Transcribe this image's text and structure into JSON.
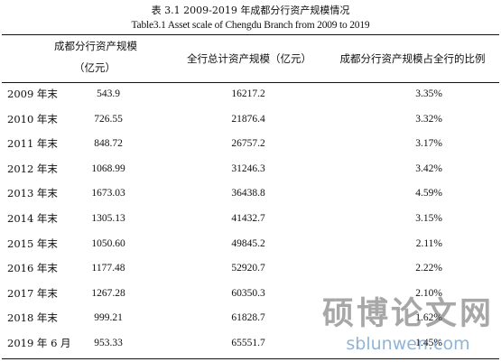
{
  "caption": {
    "chinese": "表  3.1 2009-2019 年成都分行资产规模情况",
    "english": "Table3.1 Asset scale of Chengdu Branch from 2009 to 2019"
  },
  "table": {
    "headers": {
      "col1_line1": "成都分行资产规模",
      "col1_line2": "（亿元）",
      "col2": "全行总计资产规模（亿元）",
      "col3": "成都分行资产规模占全行的比例"
    },
    "rows": [
      {
        "year": "2009 年末",
        "chengdu": "543.9",
        "total": "16217.2",
        "ratio": "3.35%"
      },
      {
        "year": "2010 年末",
        "chengdu": "726.55",
        "total": "21876.4",
        "ratio": "3.32%"
      },
      {
        "year": "2011 年末",
        "chengdu": "848.72",
        "total": "26757.2",
        "ratio": "3.17%"
      },
      {
        "year": "2012 年末",
        "chengdu": "1068.99",
        "total": "31246.3",
        "ratio": "3.42%"
      },
      {
        "year": "2013 年末",
        "chengdu": "1673.03",
        "total": "36438.8",
        "ratio": "4.59%"
      },
      {
        "year": "2014 年末",
        "chengdu": "1305.13",
        "total": "41432.7",
        "ratio": "3.15%"
      },
      {
        "year": "2015 年末",
        "chengdu": "1050.60",
        "total": "49845.2",
        "ratio": "2.11%"
      },
      {
        "year": "2016 年末",
        "chengdu": "1177.48",
        "total": "52920.7",
        "ratio": "2.22%"
      },
      {
        "year": "2017 年末",
        "chengdu": "1267.28",
        "total": "60350.3",
        "ratio": "2.10%"
      },
      {
        "year": "2018 年末",
        "chengdu": "999.21",
        "total": "61828.7",
        "ratio": "1.62%"
      },
      {
        "year": "2019 年 6 月",
        "chengdu": "953.33",
        "total": "65551.7",
        "ratio": "1.45%"
      }
    ]
  },
  "watermark": {
    "chinese": "硕博论文网",
    "url": "sblunwen.com"
  }
}
